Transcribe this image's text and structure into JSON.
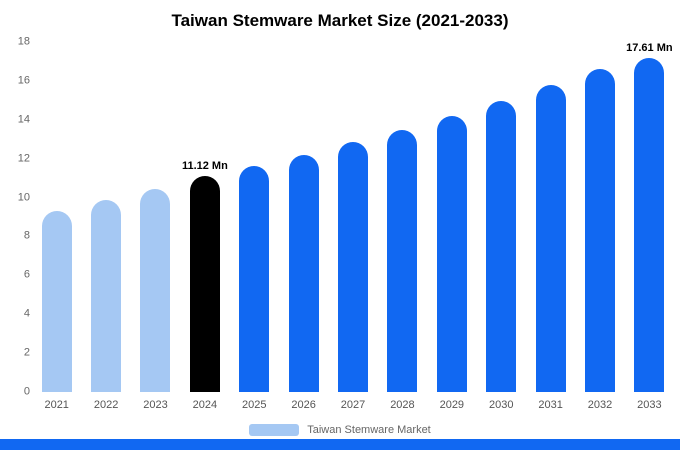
{
  "title": "Taiwan Stemware Market Size (2021-2033)",
  "legend": {
    "label": "Taiwan Stemware Market",
    "swatch_color": "#a5c8f3"
  },
  "colors": {
    "light_blue": "#a5c8f3",
    "primary_blue": "#1168f2",
    "highlight_black": "#000000",
    "footer_strip": "#1168f2"
  },
  "chart_data": {
    "type": "bar",
    "title": "Taiwan Stemware Market Size (2021-2033)",
    "xlabel": "",
    "ylabel": "",
    "ylim": [
      0,
      18
    ],
    "yticks": [
      0,
      2,
      4,
      6,
      8,
      10,
      12,
      14,
      16,
      18
    ],
    "grid": false,
    "legend_position": "bottom",
    "legend_entries": [
      "Taiwan Stemware Market"
    ],
    "categories": [
      "2021",
      "2022",
      "2023",
      "2024",
      "2025",
      "2026",
      "2027",
      "2028",
      "2029",
      "2030",
      "2031",
      "2032",
      "2033"
    ],
    "values": [
      9.3,
      9.9,
      10.45,
      11.12,
      11.6,
      12.2,
      12.85,
      13.5,
      14.2,
      14.95,
      15.8,
      16.6,
      17.61
    ],
    "bar_colors": [
      "#a5c8f3",
      "#a5c8f3",
      "#a5c8f3",
      "#000000",
      "#1168f2",
      "#1168f2",
      "#1168f2",
      "#1168f2",
      "#1168f2",
      "#1168f2",
      "#1168f2",
      "#1168f2",
      "#1168f2"
    ],
    "annotations": [
      {
        "category": "2024",
        "text": "11.12 Mn"
      },
      {
        "category": "2033",
        "text": "17.61 Mn"
      }
    ],
    "unit": "Mn"
  }
}
